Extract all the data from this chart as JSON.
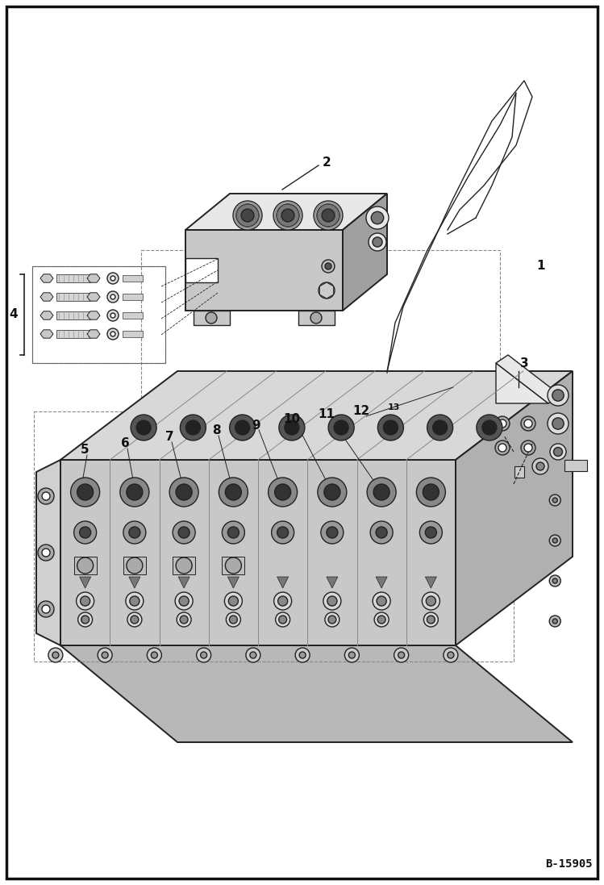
{
  "figure_width": 7.49,
  "figure_height": 10.97,
  "dpi": 100,
  "bg_color": "#ffffff",
  "border_color": "#111111",
  "border_linewidth": 2.5,
  "figure_code": "B-15905",
  "label_fontsize": 10,
  "code_fontsize": 9,
  "lc": "#222222",
  "lw": 1.0,
  "lw_thick": 1.4,
  "fc_light": "#e8e8e8",
  "fc_mid": "#c8c8c8",
  "fc_dark": "#a0a0a0",
  "fc_darkest": "#606060"
}
